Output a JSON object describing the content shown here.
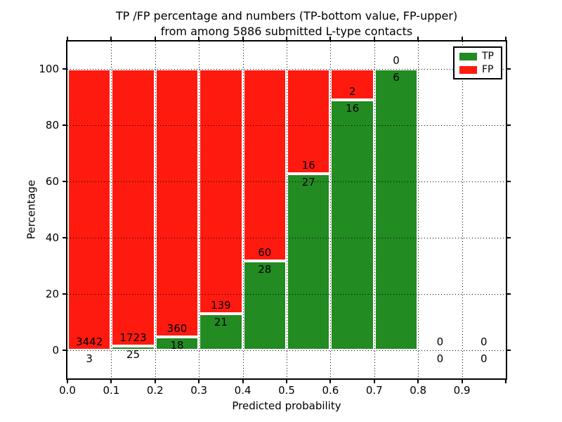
{
  "header": {
    "title_line1": "TP /FP percentage and numbers (TP-bottom value, FP-upper)",
    "title_line2": "from among 5886 submitted L-type contacts"
  },
  "chart_data": {
    "type": "bar",
    "subtype": "stacked-percentage-histogram",
    "title": "TP /FP percentage and numbers (TP-bottom value, FP-upper)\nfrom among 5886 submitted L-type contacts",
    "xlabel": "Predicted probability",
    "ylabel": "Percentage",
    "total_contacts": 5886,
    "bins": [
      "0.0-0.1",
      "0.1-0.2",
      "0.2-0.3",
      "0.3-0.4",
      "0.4-0.5",
      "0.5-0.6",
      "0.6-0.7",
      "0.7-0.8",
      "0.8-0.9",
      "0.9-1.0"
    ],
    "series": [
      {
        "name": "TP",
        "position": "bottom",
        "color": "#228b22",
        "counts": [
          3,
          25,
          18,
          21,
          28,
          27,
          16,
          6,
          0,
          0
        ]
      },
      {
        "name": "FP",
        "position": "top",
        "color": "#ff1a10",
        "counts": [
          3442,
          1723,
          360,
          139,
          60,
          16,
          2,
          0,
          0,
          0
        ]
      }
    ],
    "tp_percent_of_bin": [
      0.09,
      1.43,
      4.76,
      13.13,
      31.82,
      62.79,
      88.89,
      100.0,
      0,
      0
    ],
    "xticks": [
      "0.0",
      "0.1",
      "0.2",
      "0.3",
      "0.4",
      "0.5",
      "0.6",
      "0.7",
      "0.8",
      "0.9"
    ],
    "yticks": [
      0,
      20,
      40,
      60,
      80,
      100
    ],
    "xlim": [
      0.0,
      1.0
    ],
    "ylim": [
      -10,
      110
    ],
    "grid": "dotted",
    "legend": {
      "position": "upper right",
      "entries": [
        "TP",
        "FP"
      ]
    }
  },
  "colors": {
    "tp_green": "#228b22",
    "fp_red": "#ff1a10",
    "background": "#ffffff",
    "text": "#000000"
  }
}
